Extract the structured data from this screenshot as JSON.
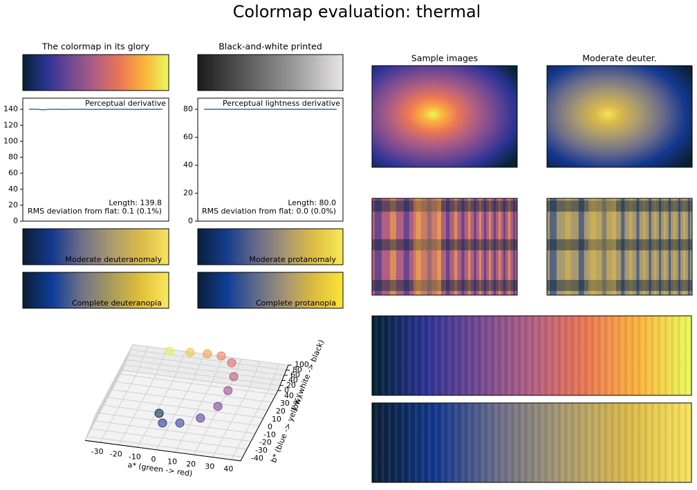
{
  "title": "Colormap evaluation: thermal",
  "chart_data": [
    {
      "type": "colorbar",
      "title": "The colormap in its glory",
      "colors": [
        "#042333",
        "#2c3395",
        "#744992",
        "#b15f82",
        "#eb7655",
        "#fbb33c",
        "#e8fa5b"
      ]
    },
    {
      "type": "colorbar",
      "title": "Black-and-white printed",
      "colors": [
        "#1c1c1c",
        "#5a5a5a",
        "#9a9a9a",
        "#e8e6e6"
      ]
    },
    {
      "type": "line",
      "annotations": [
        "Perceptual derivative",
        "Length: 139.8",
        "RMS deviation from flat: 0.1 (0.1%)"
      ],
      "color": "#1f77b4",
      "values": [
        140,
        140,
        139.5,
        140,
        140,
        139.8,
        140,
        140,
        140,
        139.8,
        140,
        140,
        140,
        140,
        140,
        139.8,
        140,
        140,
        140,
        140
      ],
      "ylim": [
        0,
        154
      ],
      "yticks": [
        0,
        20,
        40,
        60,
        80,
        100,
        120,
        140
      ]
    },
    {
      "type": "line",
      "annotations": [
        "Perceptual lightness derivative",
        "Length: 80.0",
        "RMS deviation from flat: 0.0 (0.0%)"
      ],
      "color": "#1f77b4",
      "values": [
        80,
        80,
        80,
        80,
        80,
        80,
        80,
        80,
        80,
        80,
        80,
        80,
        80,
        80,
        80,
        80,
        80,
        80,
        80,
        80
      ],
      "ylim": [
        0,
        88
      ],
      "yticks": [
        0,
        20,
        40,
        60,
        80
      ]
    },
    {
      "type": "colorbar",
      "label": "Moderate deuteranomaly",
      "colors": [
        "#0b1f33",
        "#14388f",
        "#6e6e8a",
        "#a89a70",
        "#d9b84a",
        "#f7e35e"
      ]
    },
    {
      "type": "colorbar",
      "label": "Moderate protanomaly",
      "colors": [
        "#07213a",
        "#163d8d",
        "#65698c",
        "#a59572",
        "#ddbd45",
        "#f8ea56"
      ]
    },
    {
      "type": "colorbar",
      "label": "Complete deuteranopia",
      "colors": [
        "#0c1e33",
        "#0c3c99",
        "#6e7288",
        "#a8995e",
        "#dfbe3b",
        "#fbe95d"
      ]
    },
    {
      "type": "colorbar",
      "label": "Complete protanopia",
      "colors": [
        "#0a1f38",
        "#0d3e95",
        "#5f6a8d",
        "#a39473",
        "#dcbb3f",
        "#fbe635"
      ]
    },
    {
      "type": "sample",
      "title": "Sample images",
      "colors": [
        "#042333",
        "#2c3395",
        "#744992",
        "#b15f82",
        "#eb7655",
        "#fbb33c",
        "#e8fa5b"
      ]
    },
    {
      "type": "sample",
      "title": "Moderate deuter.",
      "colors": [
        "#0b1f33",
        "#14388f",
        "#6e6e8a",
        "#a89a70",
        "#d9b84a",
        "#f7e35e"
      ]
    },
    {
      "type": "stripes",
      "colors": [
        "#042333",
        "#2c3395",
        "#744992",
        "#b15f82",
        "#eb7655",
        "#fbb33c",
        "#e8fa5b"
      ]
    },
    {
      "type": "stripes",
      "colors": [
        "#0b1f33",
        "#14388f",
        "#6e6e8a",
        "#a89a70",
        "#d9b84a",
        "#f7e35e"
      ]
    },
    {
      "type": "scatter3d",
      "xlabel": "a* (green -> red)",
      "ylabel": "b* (blue -> yellow)",
      "zlabel": "J'/K (white -> black)",
      "xlim": [
        -38,
        45
      ],
      "ylim": [
        -45,
        45
      ],
      "zlim": [
        0,
        100
      ],
      "xticks": [
        -30,
        -20,
        -10,
        0,
        10,
        20,
        30,
        40
      ],
      "yticks": [
        -40,
        -30,
        -20,
        -10,
        0,
        10,
        20,
        30,
        40
      ],
      "zticks": [
        0,
        20,
        40,
        60,
        80,
        100
      ],
      "x": [
        -8,
        -3.6,
        5.2,
        14.3,
        20,
        21,
        20.3,
        15.7,
        8.8,
        1.4,
        -7.5,
        -18
      ],
      "y": [
        -5.7,
        -20,
        -20.5,
        -13.6,
        0.6,
        18.5,
        33.8,
        47.8,
        52.4,
        51.1,
        48.4,
        44.6
      ],
      "z": [
        15,
        25,
        35,
        42,
        50,
        58,
        65,
        72,
        78,
        83,
        88,
        95
      ],
      "colors": [
        "#0e3046",
        "#27388f",
        "#3f3f9e",
        "#5a45a0",
        "#7a4c98",
        "#9a5590",
        "#b95f86",
        "#d86d70",
        "#ec8160",
        "#f39f4c",
        "#f2c44a",
        "#e8ef5c"
      ]
    }
  ]
}
